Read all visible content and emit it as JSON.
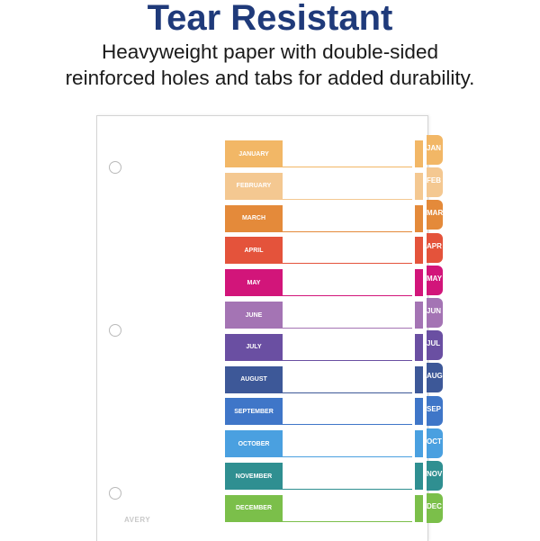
{
  "header": {
    "title": "Tear Resistant",
    "line1": "Heavyweight paper with double-sided",
    "line2": "reinforced holes and tabs for added durability."
  },
  "brand": {
    "logo_text": "AVERY"
  },
  "months": [
    {
      "full": "JANUARY",
      "abbr": "JAN",
      "color": "#f2b766"
    },
    {
      "full": "FEBRUARY",
      "abbr": "FEB",
      "color": "#f4c891"
    },
    {
      "full": "MARCH",
      "abbr": "MAR",
      "color": "#e48a3a"
    },
    {
      "full": "APRIL",
      "abbr": "APR",
      "color": "#e4533b"
    },
    {
      "full": "MAY",
      "abbr": "MAY",
      "color": "#d2157a"
    },
    {
      "full": "JUNE",
      "abbr": "JUN",
      "color": "#a474b4"
    },
    {
      "full": "JULY",
      "abbr": "JUL",
      "color": "#6a4fa2"
    },
    {
      "full": "AUGUST",
      "abbr": "AUG",
      "color": "#3d5898"
    },
    {
      "full": "SEPTEMBER",
      "abbr": "SEP",
      "color": "#3f76c8"
    },
    {
      "full": "OCTOBER",
      "abbr": "OCT",
      "color": "#4aa0e0"
    },
    {
      "full": "NOVEMBER",
      "abbr": "NOV",
      "color": "#2f8f91"
    },
    {
      "full": "DECEMBER",
      "abbr": "DEC",
      "color": "#7bbf4a"
    }
  ]
}
